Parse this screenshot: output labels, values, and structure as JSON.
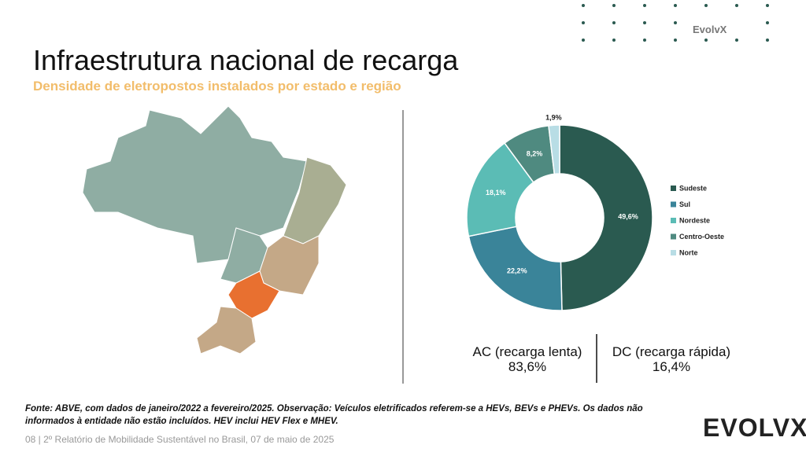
{
  "header": {
    "brand": "EvolvX",
    "title": "Infraestrutura nacional de recarga",
    "subtitle": "Densidade de eletropostos instalados por estado e região"
  },
  "chart_data": {
    "type": "donut",
    "categories": [
      "Sudeste",
      "Sul",
      "Nordeste",
      "Centro-Oeste",
      "Norte"
    ],
    "values": [
      49.6,
      22.2,
      18.1,
      8.2,
      1.9
    ],
    "value_labels": [
      "49,6%",
      "22,2%",
      "18,1%",
      "8,2%",
      "1,9%"
    ],
    "colors": [
      "#2a5a50",
      "#3a8499",
      "#5bbcb5",
      "#4f8a80",
      "#b8dde5"
    ],
    "legend": "right"
  },
  "summary": [
    {
      "label": "AC (recarga lenta)",
      "value": "83,6%"
    },
    {
      "label": "DC (recarga rápida)",
      "value": "16,4%"
    }
  ],
  "footnote": "Fonte: ABVE, com dados de janeiro/2022 a fevereiro/2025. Observação: Veículos eletrificados referem-se a HEVs, BEVs e PHEVs. Os dados não informados à entidade não estão incluídos. HEV inclui HEV Flex e MHEV.",
  "footer": "08 | 2º Relatório de Mobilidade Sustentável no Brasil, 07 de maio de 2025",
  "logo": "EVOLVX"
}
